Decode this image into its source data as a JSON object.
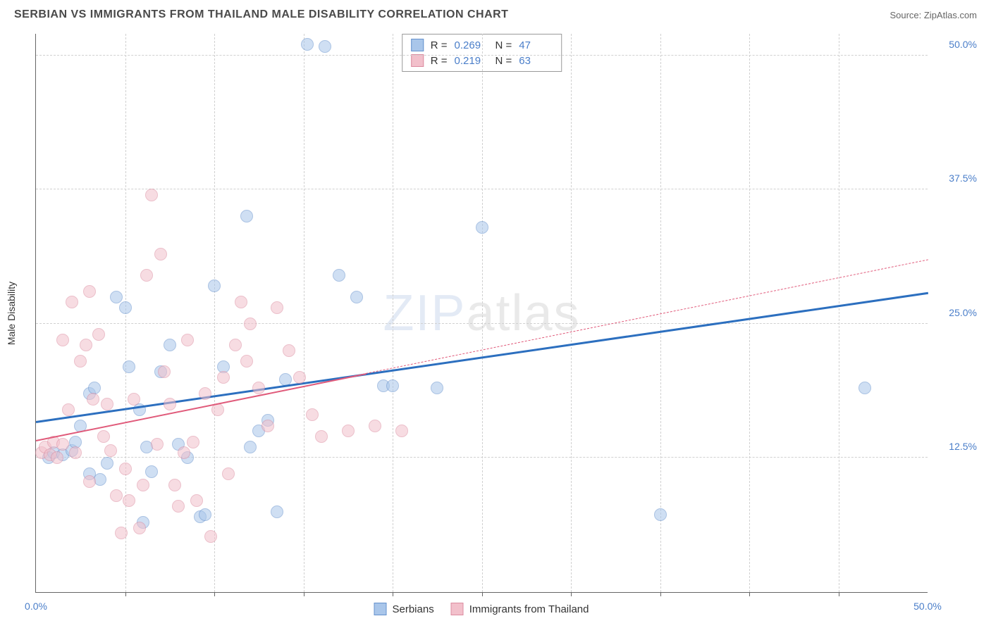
{
  "title": "SERBIAN VS IMMIGRANTS FROM THAILAND MALE DISABILITY CORRELATION CHART",
  "source": "Source: ZipAtlas.com",
  "ylabel": "Male Disability",
  "watermark": {
    "zip": "ZIP",
    "atlas": "atlas"
  },
  "chart": {
    "type": "scatter",
    "xlim": [
      0,
      50
    ],
    "ylim": [
      0,
      52
    ],
    "xticks": [
      {
        "pos": 0,
        "label": "0.0%"
      },
      {
        "pos": 50,
        "label": "50.0%"
      }
    ],
    "xticks_minor": [
      5,
      10,
      15,
      20,
      25,
      30,
      35,
      40,
      45
    ],
    "yticks": [
      {
        "pos": 12.5,
        "label": "12.5%"
      },
      {
        "pos": 25.0,
        "label": "25.0%"
      },
      {
        "pos": 37.5,
        "label": "37.5%"
      },
      {
        "pos": 50.0,
        "label": "50.0%"
      }
    ],
    "background_color": "#ffffff",
    "grid_color": "#d0d0d0",
    "axis_color": "#666666",
    "series": [
      {
        "name": "Serbians",
        "color_fill": "#a9c6ea",
        "color_stroke": "#6592cd",
        "stats": {
          "R": "0.269",
          "N": "47"
        },
        "trend": {
          "x1": 0,
          "y1": 16.0,
          "x2": 50,
          "y2": 28.0,
          "color": "#2c6fbf",
          "width": 2.5,
          "dash_after_x": null
        },
        "points": [
          [
            0.7,
            12.5
          ],
          [
            1.0,
            13.0
          ],
          [
            1.5,
            12.8
          ],
          [
            2.0,
            13.2
          ],
          [
            2.2,
            14.0
          ],
          [
            2.5,
            15.5
          ],
          [
            3.0,
            18.5
          ],
          [
            3.3,
            19.0
          ],
          [
            3.0,
            11.0
          ],
          [
            3.6,
            10.5
          ],
          [
            4.0,
            12.0
          ],
          [
            4.5,
            27.5
          ],
          [
            5.0,
            26.5
          ],
          [
            5.2,
            21.0
          ],
          [
            5.8,
            17.0
          ],
          [
            6.0,
            6.5
          ],
          [
            6.2,
            13.5
          ],
          [
            6.5,
            11.2
          ],
          [
            7.0,
            20.5
          ],
          [
            7.5,
            23.0
          ],
          [
            8.0,
            13.8
          ],
          [
            8.5,
            12.5
          ],
          [
            9.2,
            7.0
          ],
          [
            9.5,
            7.2
          ],
          [
            10.0,
            28.5
          ],
          [
            10.5,
            21.0
          ],
          [
            11.8,
            35.0
          ],
          [
            12.0,
            13.5
          ],
          [
            12.5,
            15.0
          ],
          [
            13.0,
            16.0
          ],
          [
            13.5,
            7.5
          ],
          [
            14.0,
            19.8
          ],
          [
            15.2,
            51.0
          ],
          [
            16.2,
            50.8
          ],
          [
            17.0,
            29.5
          ],
          [
            18.0,
            27.5
          ],
          [
            19.5,
            19.2
          ],
          [
            20.0,
            19.2
          ],
          [
            22.5,
            19.0
          ],
          [
            25.0,
            34.0
          ],
          [
            35.0,
            7.2
          ],
          [
            46.5,
            19.0
          ]
        ]
      },
      {
        "name": "Immigrants from Thailand",
        "color_fill": "#f2c0cb",
        "color_stroke": "#dc8ca0",
        "stats": {
          "R": "0.219",
          "N": "63"
        },
        "trend": {
          "x1": 0,
          "y1": 14.2,
          "x2": 50,
          "y2": 31.0,
          "color": "#e05a7a",
          "width": 2.2,
          "dash_after_x": 18.5
        },
        "points": [
          [
            0.3,
            13.0
          ],
          [
            0.5,
            13.5
          ],
          [
            0.8,
            12.8
          ],
          [
            1.0,
            14.0
          ],
          [
            1.2,
            12.5
          ],
          [
            1.5,
            13.8
          ],
          [
            1.8,
            17.0
          ],
          [
            1.5,
            23.5
          ],
          [
            2.0,
            27.0
          ],
          [
            2.2,
            13.0
          ],
          [
            2.5,
            21.5
          ],
          [
            2.8,
            23.0
          ],
          [
            3.0,
            28.0
          ],
          [
            3.0,
            10.3
          ],
          [
            3.2,
            18.0
          ],
          [
            3.5,
            24.0
          ],
          [
            3.8,
            14.5
          ],
          [
            4.0,
            17.5
          ],
          [
            4.2,
            13.2
          ],
          [
            4.5,
            9.0
          ],
          [
            4.8,
            5.5
          ],
          [
            5.0,
            11.5
          ],
          [
            5.2,
            8.5
          ],
          [
            5.5,
            18.0
          ],
          [
            5.8,
            6.0
          ],
          [
            6.0,
            10.0
          ],
          [
            6.2,
            29.5
          ],
          [
            6.5,
            37.0
          ],
          [
            6.8,
            13.8
          ],
          [
            7.0,
            31.5
          ],
          [
            7.2,
            20.5
          ],
          [
            7.5,
            17.5
          ],
          [
            7.8,
            10.0
          ],
          [
            8.0,
            8.0
          ],
          [
            8.3,
            13.0
          ],
          [
            8.5,
            23.5
          ],
          [
            8.8,
            14.0
          ],
          [
            9.0,
            8.5
          ],
          [
            9.5,
            18.5
          ],
          [
            9.8,
            5.2
          ],
          [
            10.2,
            17.0
          ],
          [
            10.5,
            20.0
          ],
          [
            10.8,
            11.0
          ],
          [
            11.2,
            23.0
          ],
          [
            11.5,
            27.0
          ],
          [
            11.8,
            21.5
          ],
          [
            12.0,
            25.0
          ],
          [
            12.5,
            19.0
          ],
          [
            13.0,
            15.5
          ],
          [
            13.5,
            26.5
          ],
          [
            14.2,
            22.5
          ],
          [
            14.8,
            20.0
          ],
          [
            15.5,
            16.5
          ],
          [
            16.0,
            14.5
          ],
          [
            17.5,
            15.0
          ],
          [
            19.0,
            15.5
          ],
          [
            20.5,
            15.0
          ]
        ]
      }
    ]
  },
  "stats_legend": {
    "r_label": "R =",
    "n_label": "N ="
  },
  "bottom_legend": [
    {
      "label": "Serbians",
      "fill": "#a9c6ea",
      "stroke": "#6592cd"
    },
    {
      "label": "Immigrants from Thailand",
      "fill": "#f2c0cb",
      "stroke": "#dc8ca0"
    }
  ]
}
